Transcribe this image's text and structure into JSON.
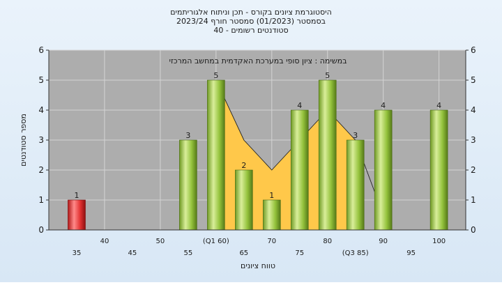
{
  "chart_data": {
    "type": "bar",
    "title_lines": [
      "היסטוגרמת ציונים בקורס - תכן וניתוח אלגוריתמים",
      "בסמסטר  (01/2023)  סמסטר חורף 2023/24",
      "סטודנטים רשומים - 40"
    ],
    "subtitle": "במשימה : ציון סופי במערכת האקדמית במחשב המרכזי",
    "xlabel": "טווח ציונים",
    "ylabel": "מספר סטודנטים",
    "ylim": [
      0,
      6
    ],
    "yticks": [
      0,
      1,
      2,
      3,
      4,
      5,
      6
    ],
    "x_ticks_lower": [
      "35",
      "45",
      "55",
      "65",
      "75",
      "85",
      "95"
    ],
    "x_ticks_upper": [
      "40",
      "50",
      "60",
      "70",
      "80",
      "90",
      "100"
    ],
    "x_ticks_display": [
      {
        "x": 35,
        "label": "35",
        "row": 2
      },
      {
        "x": 40,
        "label": "40",
        "row": 1
      },
      {
        "x": 45,
        "label": "45",
        "row": 2
      },
      {
        "x": 50,
        "label": "50",
        "row": 1
      },
      {
        "x": 55,
        "label": "55",
        "row": 2
      },
      {
        "x": 60,
        "label": "(Q1 60)",
        "row": 1
      },
      {
        "x": 65,
        "label": "65",
        "row": 2
      },
      {
        "x": 70,
        "label": "70",
        "row": 1
      },
      {
        "x": 75,
        "label": "75",
        "row": 2
      },
      {
        "x": 80,
        "label": "80",
        "row": 1
      },
      {
        "x": 85,
        "label": "(Q3 85)",
        "row": 2
      },
      {
        "x": 90,
        "label": "90",
        "row": 1
      },
      {
        "x": 95,
        "label": "95",
        "row": 2
      },
      {
        "x": 100,
        "label": "100",
        "row": 1
      }
    ],
    "bars": [
      {
        "x": 35,
        "value": 1,
        "color": "red"
      },
      {
        "x": 55,
        "value": 3,
        "color": "green"
      },
      {
        "x": 60,
        "value": 5,
        "color": "green"
      },
      {
        "x": 65,
        "value": 2,
        "color": "green"
      },
      {
        "x": 70,
        "value": 1,
        "color": "green"
      },
      {
        "x": 75,
        "value": 4,
        "color": "green"
      },
      {
        "x": 80,
        "value": 5,
        "color": "green"
      },
      {
        "x": 85,
        "value": 3,
        "color": "green"
      },
      {
        "x": 90,
        "value": 4,
        "color": "green"
      },
      {
        "x": 100,
        "value": 4,
        "color": "green"
      }
    ],
    "area_points": [
      {
        "x": 60,
        "y": 0
      },
      {
        "x": 60,
        "y": 5
      },
      {
        "x": 65,
        "y": 3
      },
      {
        "x": 70,
        "y": 2
      },
      {
        "x": 75,
        "y": 3
      },
      {
        "x": 80,
        "y": 4
      },
      {
        "x": 85,
        "y": 3
      },
      {
        "x": 85,
        "y": 0
      }
    ],
    "trend_line": [
      {
        "x": 60,
        "y": 5
      },
      {
        "x": 65,
        "y": 3
      },
      {
        "x": 70,
        "y": 2
      },
      {
        "x": 75,
        "y": 3
      },
      {
        "x": 80,
        "y": 4
      },
      {
        "x": 85,
        "y": 3
      },
      {
        "x": 89,
        "y": 1
      }
    ],
    "colors": {
      "plot_bg": "#adadad",
      "area": "#ffc84a",
      "bar_green": "#8fbf3a",
      "bar_red": "#e03030",
      "grid": "#d4d4d4"
    }
  }
}
